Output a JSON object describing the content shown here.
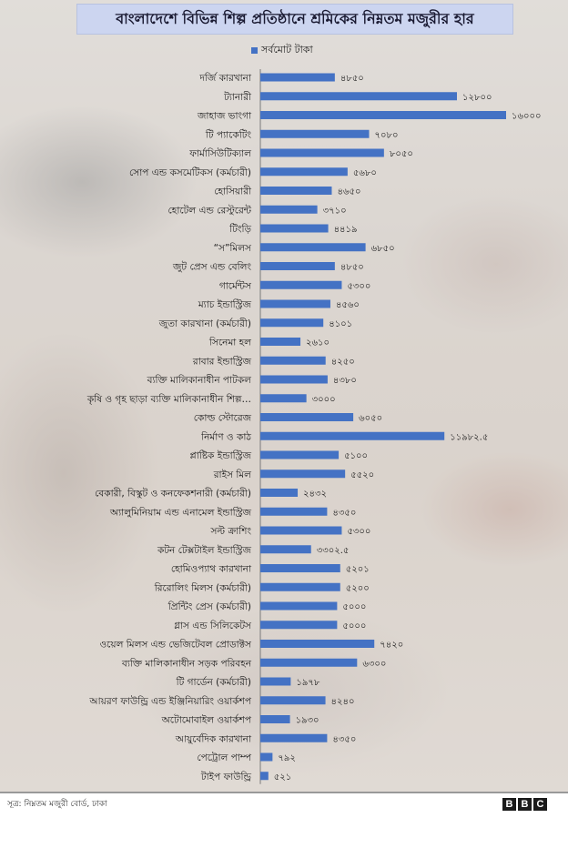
{
  "title": "বাংলাদেশে বিভিন্ন শিল্প প্রতিষ্ঠানে শ্রমিকের নিম্নতম মজুরীর হার",
  "source": "সূত্র: নিম্নতম মজুরী বোর্ড, ঢাকা",
  "logo": [
    "B",
    "B",
    "C"
  ],
  "colors": {
    "bar": "#4472c4",
    "title_bg": "#ccd5f0"
  },
  "chart_data": {
    "type": "bar",
    "orientation": "horizontal",
    "grid": false,
    "legend_position": "top",
    "series": [
      {
        "name": "সর্বমোট টাকা",
        "values": [
          4850,
          12800,
          16000,
          7080,
          8050,
          5680,
          4650,
          3710,
          4419,
          6850,
          4850,
          5300,
          4560,
          4101,
          2610,
          4250,
          4380,
          3000,
          6050,
          11982.5,
          5100,
          5520,
          2432,
          4350,
          5300,
          3302.5,
          5201,
          5200,
          5000,
          5000,
          7420,
          6300,
          1978,
          4240,
          1930,
          4350,
          792,
          521
        ],
        "value_labels": [
          "৪৮৫০",
          "১২৮০০",
          "১৬০০০",
          "৭০৮০",
          "৮০৫০",
          "৫৬৮০",
          "৪৬৫০",
          "৩৭১০",
          "৪৪১৯",
          "৬৮৫০",
          "৪৮৫০",
          "৫৩০০",
          "৪৫৬০",
          "৪১০১",
          "২৬১০",
          "৪২৫০",
          "৪৩৮০",
          "৩০০০",
          "৬০৫০",
          "১১৯৮২.৫",
          "৫১০০",
          "৫৫২০",
          "২৪৩২",
          "৪৩৫০",
          "৫৩০০",
          "৩৩০২.৫",
          "৫২০১",
          "৫২০০",
          "৫০০০",
          "৫০০০",
          "৭৪২০",
          "৬৩০০",
          "১৯৭৮",
          "৪২৪০",
          "১৯৩০",
          "৪৩৫০",
          "৭৯২",
          "৫২১"
        ]
      }
    ],
    "categories": [
      "দর্জি কারখানা",
      "ট্যানারী",
      "জাহাজ ভাংগা",
      "টি প্যাকেটিং",
      "ফার্মাসিউটিক্যাল",
      "সোপ এন্ড কসমেটিকস (কর্মচারী)",
      "হোসিয়ারী",
      "হোটেল এন্ড রেস্টুরেন্ট",
      "টিংড়ি",
      "“স”মিলস",
      "জুট প্রেস এন্ড বেলিং",
      "গার্মেন্টস",
      "ম্যাচ ইন্ডাস্ট্রিজ",
      "জুতা কারখানা (কর্মচারী)",
      "সিনেমা হল",
      "রাবার ইন্ডাস্ট্রিজ",
      "ব্যক্তি মালিকানাধীন পাটকল",
      "কৃষি ও গৃহ ছাড়া ব্যক্তি মালিকানাধীন শিল্প…",
      "কোল্ড স্টোরেজ",
      "নির্মাণ ও কাঠ",
      "প্লাষ্টিক ইন্ডাস্ট্রিজ",
      "রাইস মিল",
      "বেকারী, বিস্কুট ও কনফেকশনারী (কর্মচারী)",
      "অ্যালুমিনিয়াম এন্ড এনামেল ইন্ডাস্ট্রিজ",
      "সল্ট ক্রাশিং",
      "কটন টেক্সটাইল ইন্ডাস্ট্রিজ",
      "হোমিওপ্যাথ কারখানা",
      "রিরোলিং মিলস (কর্মচারী)",
      "প্রিন্টিং প্রেস (কর্মচারী)",
      "গ্লাস এন্ড সিলিকেটস",
      "ওয়েল মিলস এন্ড ভেজিটেবল প্রোডাক্টস",
      "ব্যক্তি মালিকানাধীন সড়ক পরিবহন",
      "টি গার্ডেন (কর্মচারী)",
      "আয়রণ ফাউন্ড্রি এন্ড ইঞ্জিনিয়ারিং ওয়ার্কশপ",
      "অটোমোবাইল ওয়ার্কশপ",
      "আয়ুর্বেদিক কারখানা",
      "পেট্রোল পাম্প",
      "টাইপ ফাউন্ড্রি"
    ]
  }
}
